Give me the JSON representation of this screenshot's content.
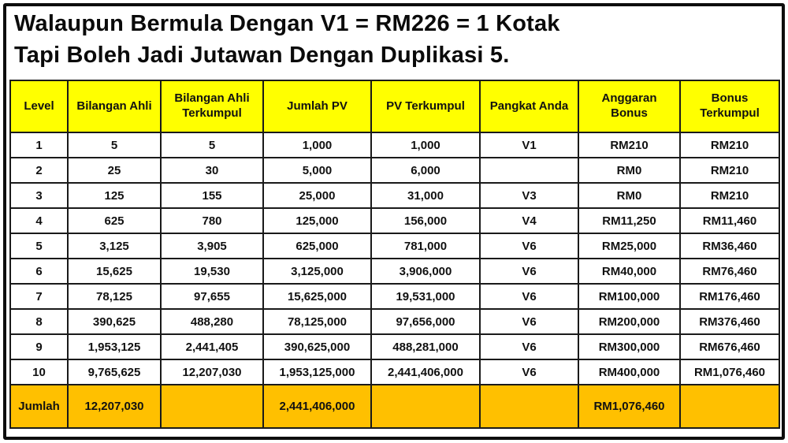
{
  "title": {
    "line1": "Walaupun Bermula Dengan V1 = RM226 = 1 Kotak",
    "line2": "Tapi Boleh Jadi Jutawan Dengan Duplikasi 5."
  },
  "table": {
    "columns": [
      "Level",
      "Bilangan Ahli",
      "Bilangan Ahli Terkumpul",
      "Jumlah PV",
      "PV Terkumpul",
      "Pangkat Anda",
      "Anggaran Bonus",
      "Bonus Terkumpul"
    ],
    "rows": [
      [
        "1",
        "5",
        "5",
        "1,000",
        "1,000",
        "V1",
        "RM210",
        "RM210"
      ],
      [
        "2",
        "25",
        "30",
        "5,000",
        "6,000",
        "",
        "RM0",
        "RM210"
      ],
      [
        "3",
        "125",
        "155",
        "25,000",
        "31,000",
        "V3",
        "RM0",
        "RM210"
      ],
      [
        "4",
        "625",
        "780",
        "125,000",
        "156,000",
        "V4",
        "RM11,250",
        "RM11,460"
      ],
      [
        "5",
        "3,125",
        "3,905",
        "625,000",
        "781,000",
        "V6",
        "RM25,000",
        "RM36,460"
      ],
      [
        "6",
        "15,625",
        "19,530",
        "3,125,000",
        "3,906,000",
        "V6",
        "RM40,000",
        "RM76,460"
      ],
      [
        "7",
        "78,125",
        "97,655",
        "15,625,000",
        "19,531,000",
        "V6",
        "RM100,000",
        "RM176,460"
      ],
      [
        "8",
        "390,625",
        "488,280",
        "78,125,000",
        "97,656,000",
        "V6",
        "RM200,000",
        "RM376,460"
      ],
      [
        "9",
        "1,953,125",
        "2,441,405",
        "390,625,000",
        "488,281,000",
        "V6",
        "RM300,000",
        "RM676,460"
      ],
      [
        "10",
        "9,765,625",
        "12,207,030",
        "1,953,125,000",
        "2,441,406,000",
        "V6",
        "RM400,000",
        "RM1,076,460"
      ]
    ],
    "total_row": [
      "Jumlah",
      "12,207,030",
      "",
      "2,441,406,000",
      "",
      "",
      "RM1,076,460",
      ""
    ]
  },
  "colors": {
    "header_bg": "#ffff00",
    "total_bg": "#ffc000",
    "border": "#1a1a1a"
  }
}
